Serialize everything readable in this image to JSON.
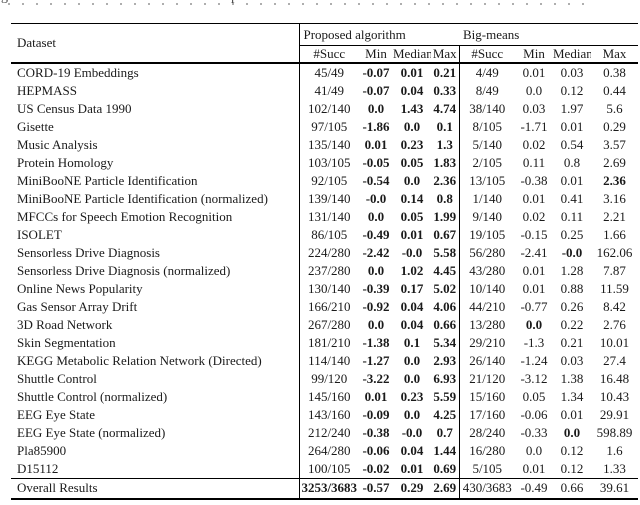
{
  "cropped_top_line": {
    "fragment_left": "g",
    "fragment_mid": "p"
  },
  "table": {
    "header": {
      "dataset": "Dataset",
      "groups": [
        {
          "label": "Proposed algorithm"
        },
        {
          "label": "Big-means"
        }
      ],
      "columns": [
        "#Succ",
        "Min",
        "Median",
        "Max"
      ]
    },
    "rows": [
      {
        "dataset": "CORD-19 Embeddings",
        "p": [
          "45/49",
          "-0.07",
          "0.01",
          "0.21"
        ],
        "b": [
          "4/49",
          "0.01",
          "0.03",
          "0.38"
        ],
        "bb": [
          false,
          false,
          false,
          false
        ]
      },
      {
        "dataset": "HEPMASS",
        "p": [
          "41/49",
          "-0.07",
          "0.04",
          "0.33"
        ],
        "b": [
          "8/49",
          "0.0",
          "0.12",
          "0.44"
        ],
        "bb": [
          false,
          false,
          false,
          false
        ]
      },
      {
        "dataset": "US Census Data 1990",
        "p": [
          "102/140",
          "0.0",
          "1.43",
          "4.74"
        ],
        "b": [
          "38/140",
          "0.03",
          "1.97",
          "5.6"
        ],
        "bb": [
          false,
          false,
          false,
          false
        ]
      },
      {
        "dataset": "Gisette",
        "p": [
          "97/105",
          "-1.86",
          "0.0",
          "0.1"
        ],
        "b": [
          "8/105",
          "-1.71",
          "0.01",
          "0.29"
        ],
        "bb": [
          false,
          false,
          false,
          false
        ]
      },
      {
        "dataset": "Music Analysis",
        "p": [
          "135/140",
          "0.01",
          "0.23",
          "1.3"
        ],
        "b": [
          "5/140",
          "0.02",
          "0.54",
          "3.57"
        ],
        "bb": [
          false,
          false,
          false,
          false
        ]
      },
      {
        "dataset": "Protein Homology",
        "p": [
          "103/105",
          "-0.05",
          "0.05",
          "1.83"
        ],
        "b": [
          "2/105",
          "0.11",
          "0.8",
          "2.69"
        ],
        "bb": [
          false,
          false,
          false,
          false
        ]
      },
      {
        "dataset": "MiniBooNE Particle Identification",
        "p": [
          "92/105",
          "-0.54",
          "0.0",
          "2.36"
        ],
        "b": [
          "13/105",
          "-0.38",
          "0.01",
          "2.36"
        ],
        "bb": [
          false,
          false,
          false,
          true
        ]
      },
      {
        "dataset": "MiniBooNE Particle Identification (normalized)",
        "p": [
          "139/140",
          "-0.0",
          "0.14",
          "0.8"
        ],
        "b": [
          "1/140",
          "0.01",
          "0.41",
          "3.16"
        ],
        "bb": [
          false,
          false,
          false,
          false
        ]
      },
      {
        "dataset": "MFCCs for Speech Emotion Recognition",
        "p": [
          "131/140",
          "0.0",
          "0.05",
          "1.99"
        ],
        "b": [
          "9/140",
          "0.02",
          "0.11",
          "2.21"
        ],
        "bb": [
          false,
          false,
          false,
          false
        ]
      },
      {
        "dataset": "ISOLET",
        "p": [
          "86/105",
          "-0.49",
          "0.01",
          "0.67"
        ],
        "b": [
          "19/105",
          "-0.15",
          "0.25",
          "1.66"
        ],
        "bb": [
          false,
          false,
          false,
          false
        ]
      },
      {
        "dataset": "Sensorless Drive Diagnosis",
        "p": [
          "224/280",
          "-2.42",
          "-0.0",
          "5.58"
        ],
        "b": [
          "56/280",
          "-2.41",
          "-0.0",
          "162.06"
        ],
        "bb": [
          false,
          false,
          true,
          false
        ]
      },
      {
        "dataset": "Sensorless Drive Diagnosis (normalized)",
        "p": [
          "237/280",
          "0.0",
          "1.02",
          "4.45"
        ],
        "b": [
          "43/280",
          "0.01",
          "1.28",
          "7.87"
        ],
        "bb": [
          false,
          false,
          false,
          false
        ]
      },
      {
        "dataset": "Online News Popularity",
        "p": [
          "130/140",
          "-0.39",
          "0.17",
          "5.02"
        ],
        "b": [
          "10/140",
          "0.01",
          "0.88",
          "11.59"
        ],
        "bb": [
          false,
          false,
          false,
          false
        ]
      },
      {
        "dataset": "Gas Sensor Array Drift",
        "p": [
          "166/210",
          "-0.92",
          "0.04",
          "4.06"
        ],
        "b": [
          "44/210",
          "-0.77",
          "0.26",
          "8.42"
        ],
        "bb": [
          false,
          false,
          false,
          false
        ]
      },
      {
        "dataset": "3D Road Network",
        "p": [
          "267/280",
          "0.0",
          "0.04",
          "0.66"
        ],
        "b": [
          "13/280",
          "0.0",
          "0.22",
          "2.76"
        ],
        "bb": [
          false,
          true,
          false,
          false
        ]
      },
      {
        "dataset": "Skin Segmentation",
        "p": [
          "181/210",
          "-1.38",
          "0.1",
          "5.34"
        ],
        "b": [
          "29/210",
          "-1.3",
          "0.21",
          "10.01"
        ],
        "bb": [
          false,
          false,
          false,
          false
        ]
      },
      {
        "dataset": "KEGG Metabolic Relation Network (Directed)",
        "p": [
          "114/140",
          "-1.27",
          "0.0",
          "2.93"
        ],
        "b": [
          "26/140",
          "-1.24",
          "0.03",
          "27.4"
        ],
        "bb": [
          false,
          false,
          false,
          false
        ]
      },
      {
        "dataset": "Shuttle Control",
        "p": [
          "99/120",
          "-3.22",
          "0.0",
          "6.93"
        ],
        "b": [
          "21/120",
          "-3.12",
          "1.38",
          "16.48"
        ],
        "bb": [
          false,
          false,
          false,
          false
        ]
      },
      {
        "dataset": "Shuttle Control (normalized)",
        "p": [
          "145/160",
          "0.01",
          "0.23",
          "5.59"
        ],
        "b": [
          "15/160",
          "0.05",
          "1.34",
          "10.43"
        ],
        "bb": [
          false,
          false,
          false,
          false
        ]
      },
      {
        "dataset": "EEG Eye State",
        "p": [
          "143/160",
          "-0.09",
          "0.0",
          "4.25"
        ],
        "b": [
          "17/160",
          "-0.06",
          "0.01",
          "29.91"
        ],
        "bb": [
          false,
          false,
          false,
          false
        ]
      },
      {
        "dataset": "EEG Eye State (normalized)",
        "p": [
          "212/240",
          "-0.38",
          "-0.0",
          "0.7"
        ],
        "b": [
          "28/240",
          "-0.33",
          "0.0",
          "598.89"
        ],
        "bb": [
          false,
          false,
          true,
          false
        ]
      },
      {
        "dataset": "Pla85900",
        "p": [
          "264/280",
          "-0.06",
          "0.04",
          "1.44"
        ],
        "b": [
          "16/280",
          "0.0",
          "0.12",
          "1.6"
        ],
        "bb": [
          false,
          false,
          false,
          false
        ]
      },
      {
        "dataset": "D15112",
        "p": [
          "100/105",
          "-0.02",
          "0.01",
          "0.69"
        ],
        "b": [
          "5/105",
          "0.01",
          "0.12",
          "1.33"
        ],
        "bb": [
          false,
          false,
          false,
          false
        ]
      }
    ],
    "overall": {
      "dataset": "Overall Results",
      "p": [
        "3253/3683",
        "-0.57",
        "0.29",
        "2.69"
      ],
      "b": [
        "430/3683",
        "-0.49",
        "0.66",
        "39.61"
      ]
    }
  }
}
